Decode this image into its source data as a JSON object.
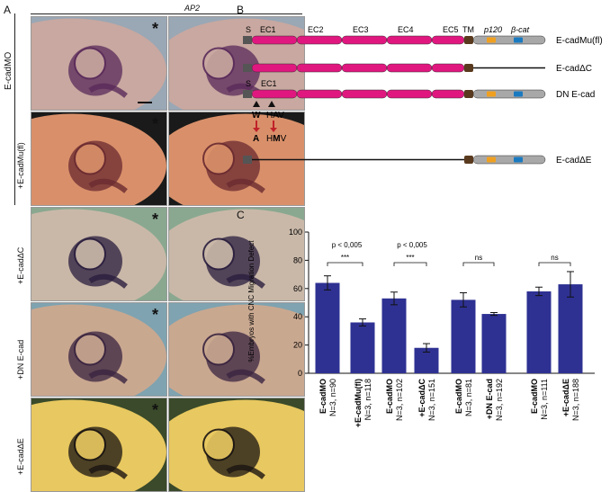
{
  "panel_a": {
    "letter": "A",
    "gene_label": "AP2",
    "outer_label": "E-cadMO",
    "star": "*",
    "rows": [
      {
        "label": "",
        "bg": "#9aa7b5",
        "embryo": "#c8a8a0",
        "stain": "#5a2a5a"
      },
      {
        "label": "+E-cadMu(fl)",
        "bg": "#1a1a1a",
        "embryo": "#d9906a",
        "stain": "#6a2a30"
      },
      {
        "label": "+E-cadΔC",
        "bg": "#8aa890",
        "embryo": "#c9b8a8",
        "stain": "#2a1e3e"
      },
      {
        "label": "+DN E-cad",
        "bg": "#7fa3b0",
        "embryo": "#c9a890",
        "stain": "#3a2440"
      },
      {
        "label": "+E-cadΔE",
        "bg": "#3a4a2a",
        "embryo": "#e8c860",
        "stain": "#1a1412"
      }
    ]
  },
  "panel_b": {
    "letter": "B",
    "domain_labels": [
      "S",
      "EC1",
      "EC2",
      "EC3",
      "EC4",
      "EC5",
      "TM",
      "p120",
      "β-cat"
    ],
    "constructs": [
      "E-cadMu(fl)",
      "E-cadΔC",
      "DN E-cad",
      "E-cadΔE"
    ],
    "dn_labels": {
      "s": "S",
      "ec1": "EC1"
    },
    "mutation": {
      "from_left": "W",
      "from_right": "HAV",
      "to_left": "A",
      "to_right_pre": "H",
      "to_right_mid": "M",
      "to_right_post": "V"
    },
    "colors": {
      "ec": "#e0177f",
      "signal": "#555555",
      "tm": "#5a3a1e",
      "cyto": "#a8a8a8",
      "p120": "#f0a020",
      "bcat": "#1a7ac0",
      "arrow_red": "#c0222a"
    }
  },
  "panel_c": {
    "letter": "C"
  },
  "chart_data": {
    "type": "bar",
    "ylabel": "%Embryos with CNC Migration Defect",
    "ylim": [
      0,
      100
    ],
    "yticks": [
      0,
      20,
      40,
      60,
      80,
      100
    ],
    "bar_color": "#2e3192",
    "categories": [
      {
        "name": "E-cadMO",
        "n": "N=3, n=90"
      },
      {
        "name": "+E-cadMu(fl)",
        "n": "N=3, n=118"
      },
      {
        "name": "E-cadMO",
        "n": "N=3, n=102"
      },
      {
        "name": "+E-cadΔC",
        "n": "N=3, n=151"
      },
      {
        "name": "E-cadMO",
        "n": "N=3, n=81"
      },
      {
        "name": "+DN E-cad",
        "n": "N=3, n=192"
      },
      {
        "name": "E-cadMO",
        "n": "N=3, n=111"
      },
      {
        "name": "+E-cadΔE",
        "n": "N=3, n=188"
      }
    ],
    "values": [
      64,
      36,
      53,
      18,
      52,
      42,
      58,
      63
    ],
    "errors": [
      5,
      2.5,
      4.5,
      3,
      5,
      1,
      3,
      9
    ],
    "comparisons": [
      {
        "pair": [
          0,
          1
        ],
        "p": "p < 0,005",
        "stars": "***"
      },
      {
        "pair": [
          2,
          3
        ],
        "p": "p < 0,005",
        "stars": "***"
      },
      {
        "pair": [
          4,
          5
        ],
        "p": "",
        "stars": "ns"
      },
      {
        "pair": [
          6,
          7
        ],
        "p": "",
        "stars": "ns"
      }
    ]
  }
}
